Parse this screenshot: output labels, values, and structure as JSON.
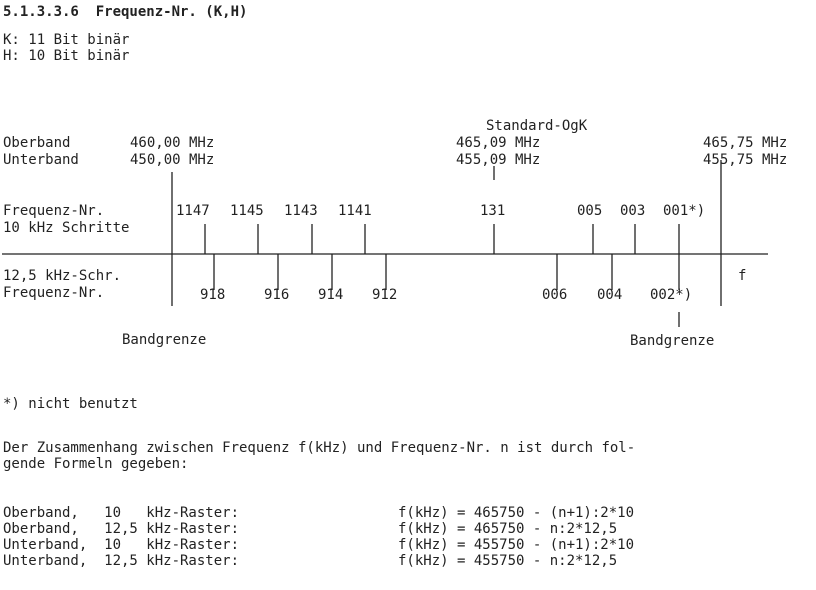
{
  "heading": "5.1.3.3.6  Frequenz-Nr. (K,H)",
  "bits": {
    "k": "K: 11 Bit binär",
    "h": "H: 10 Bit binär"
  },
  "diagram": {
    "oberband_label": "Oberband",
    "unterband_label": "Unterband",
    "start_ober": "460,00 MHz",
    "start_unter": "450,00 MHz",
    "ogk_label": "Standard-OgK",
    "ogk_ober": "465,09 MHz",
    "ogk_unter": "455,09 MHz",
    "end_ober": "465,75 MHz",
    "end_unter": "455,75 MHz",
    "row10_label_1": "Frequenz-Nr.",
    "row10_label_2": "10 kHz Schritte",
    "row10_numbers": [
      "1147",
      "1145",
      "1143",
      "1141",
      "131",
      "005",
      "003",
      "001*)"
    ],
    "row125_label_1": "12,5 kHz-Schr.",
    "row125_label_2": "Frequenz-Nr.",
    "row125_numbers": [
      "918",
      "916",
      "914",
      "912",
      "006",
      "004",
      "002*)"
    ],
    "axis_label": "f",
    "bandgrenze_left": "Bandgrenze",
    "bandgrenze_right": "Bandgrenze"
  },
  "footnote": "*) nicht benutzt",
  "paragraph": [
    "Der Zusammenhang zwischen Frequenz f(kHz) und Frequenz-Nr. n ist durch fol-",
    "gende Formeln gegeben:"
  ],
  "formulas": [
    {
      "label": "Oberband,   10   kHz-Raster:",
      "formula": "f(kHz) = 465750 - (n+1):2*10"
    },
    {
      "label": "Oberband,   12,5 kHz-Raster:",
      "formula": "f(kHz) = 465750 - n:2*12,5"
    },
    {
      "label": "Unterband,  10   kHz-Raster:",
      "formula": "f(kHz) = 455750 - (n+1):2*10"
    },
    {
      "label": "Unterband,  12,5 kHz-Raster:",
      "formula": "f(kHz) = 455750 - n:2*12,5"
    }
  ]
}
